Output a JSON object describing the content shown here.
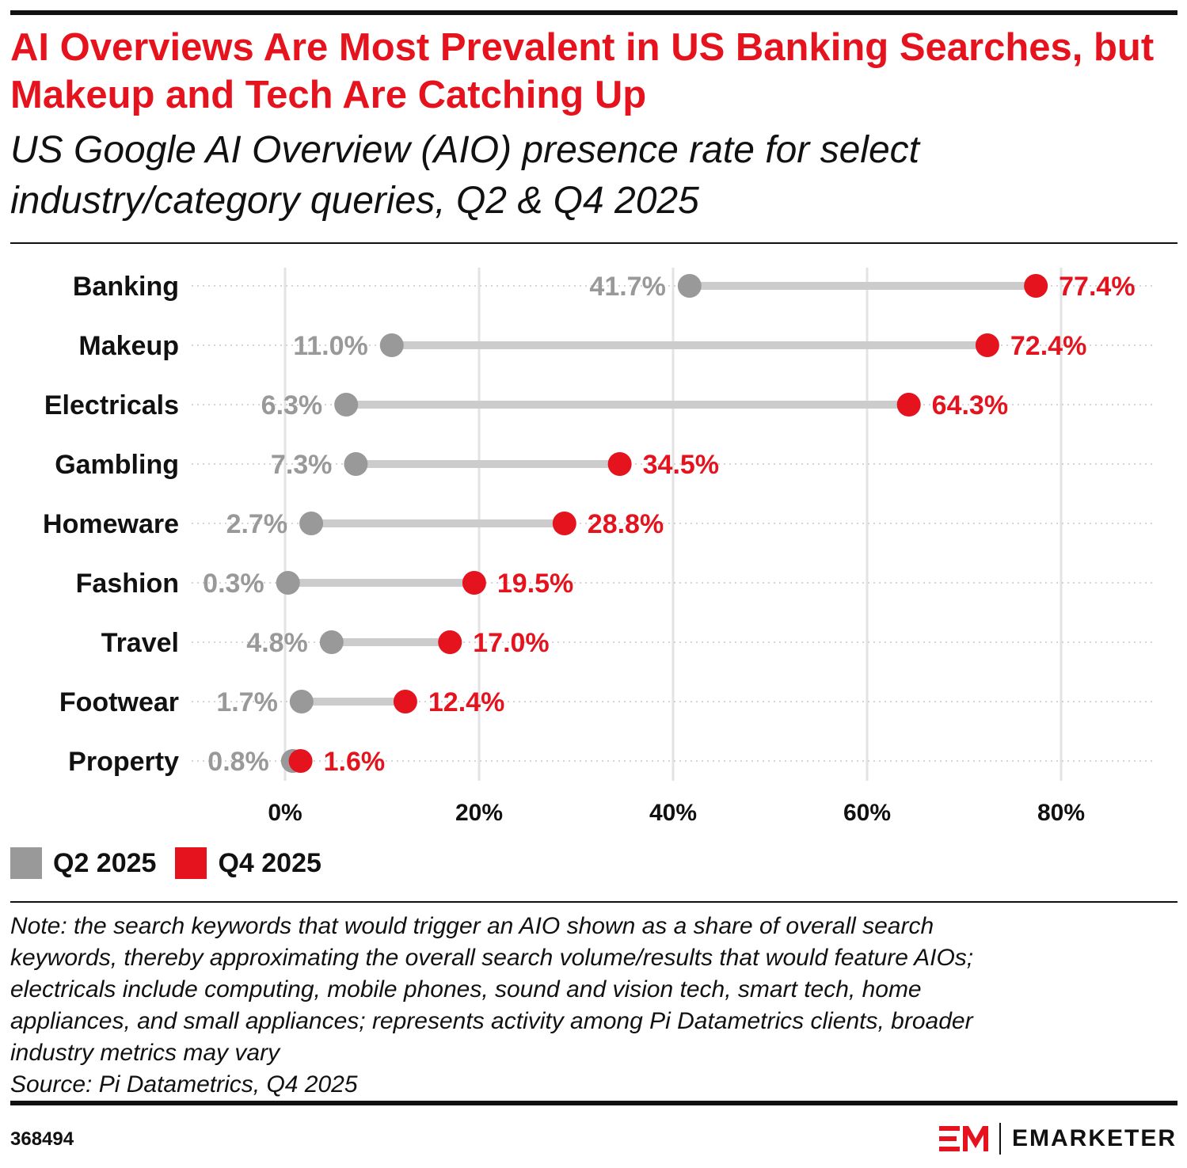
{
  "header": {
    "title": "AI Overviews Are Most Prevalent in US Banking Searches, but Makeup and Tech Are Catching Up",
    "subtitle": "US Google AI Overview (AIO) presence rate for select industry/category queries, Q2 & Q4 2025"
  },
  "colors": {
    "q2": "#999999",
    "q4": "#e4131e",
    "connector": "#cccccc",
    "grid": "#e3e3e3"
  },
  "chart_data": {
    "type": "dumbbell",
    "categories": [
      "Banking",
      "Makeup",
      "Electricals",
      "Gambling",
      "Homeware",
      "Fashion",
      "Travel",
      "Footwear",
      "Property"
    ],
    "series": [
      {
        "name": "Q2 2025",
        "values": [
          41.7,
          11.0,
          6.3,
          7.3,
          2.7,
          0.3,
          4.8,
          1.7,
          0.8
        ]
      },
      {
        "name": "Q4 2025",
        "values": [
          77.4,
          72.4,
          64.3,
          34.5,
          28.8,
          19.5,
          17.0,
          12.4,
          1.6
        ]
      }
    ],
    "q2_labels": [
      "41.7%",
      "11.0%",
      "6.3%",
      "7.3%",
      "2.7%",
      "0.3%",
      "4.8%",
      "1.7%",
      "0.8%"
    ],
    "q4_labels": [
      "77.4%",
      "72.4%",
      "64.3%",
      "34.5%",
      "28.8%",
      "19.5%",
      "17.0%",
      "12.4%",
      "1.6%"
    ],
    "x_ticks": [
      0,
      20,
      40,
      60,
      80
    ],
    "x_tick_labels": [
      "0%",
      "20%",
      "40%",
      "60%",
      "80%"
    ],
    "xlim": [
      0,
      80
    ],
    "grid": true,
    "legend_position": "bottom-left"
  },
  "legend": {
    "q2_label": "Q2 2025",
    "q4_label": "Q4 2025"
  },
  "note": {
    "lines": [
      "Note: the search keywords that would trigger an AIO shown as a share of overall search",
      "keywords, thereby approximating the overall search volume/results that would feature AIOs;",
      "electricals include computing, mobile phones, sound and vision tech, smart tech, home",
      "appliances, and small appliances; represents activity among Pi Datametrics clients, broader",
      "industry metrics may vary"
    ],
    "source": "Source: Pi Datametrics, Q4 2025"
  },
  "footer": {
    "chart_id": "368494",
    "brand_name": "EMARKETER"
  }
}
